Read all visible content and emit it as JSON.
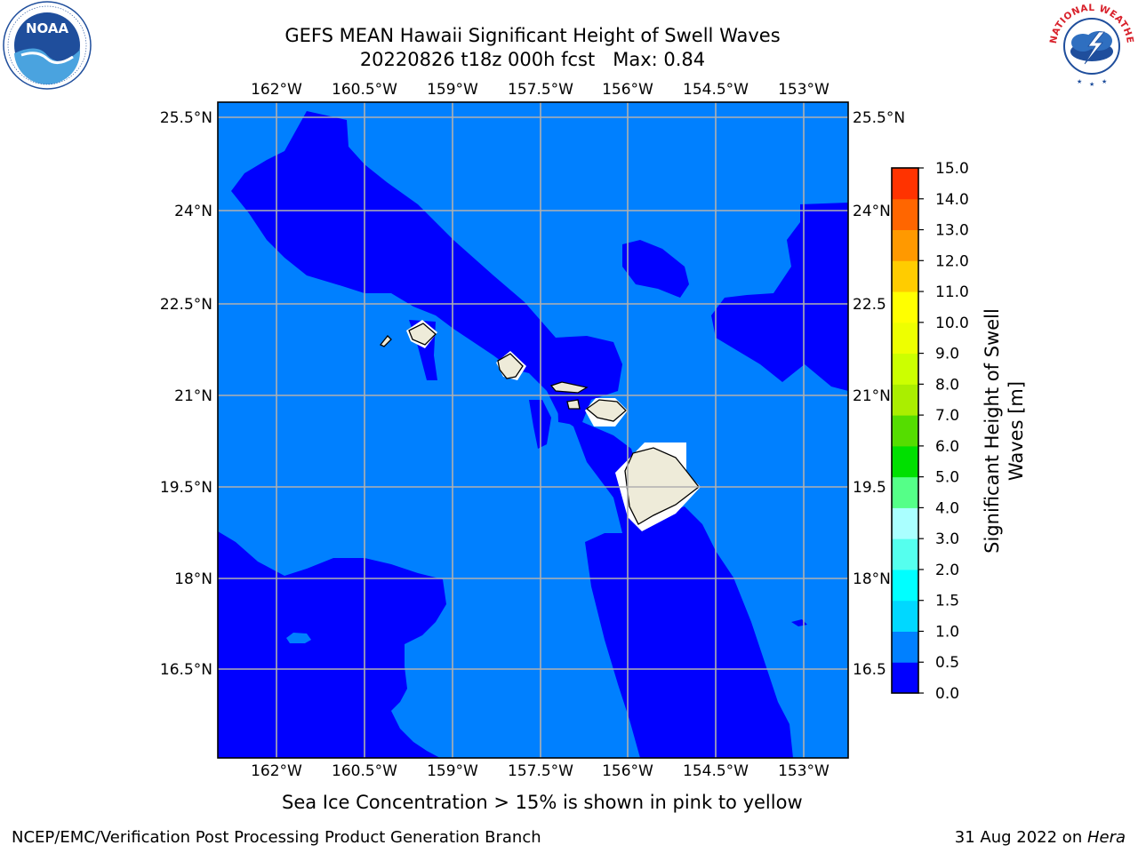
{
  "header": {
    "title_line1": "GEFS MEAN Hawaii Significant Height of Swell Waves",
    "title_line2": "20220826 t18z 000h fcst   Max: 0.84"
  },
  "logos": {
    "left": {
      "icon": "noaa-logo-icon",
      "text": "NOAA"
    },
    "right": {
      "icon": "nws-logo-icon",
      "text": "NATIONAL WEATHER SERVICE"
    }
  },
  "map": {
    "lon_ticks": [
      "162°W",
      "160.5°W",
      "159°W",
      "157.5°W",
      "156°W",
      "154.5°W",
      "153°W"
    ],
    "lat_ticks_left": [
      "25.5°N",
      "24°N",
      "22.5°N",
      "21°N",
      "19.5°N",
      "18°N",
      "16.5°N"
    ],
    "lat_ticks_right": [
      "25.5°N",
      "24°N",
      "22.5",
      "21°N",
      "19.5",
      "18°N",
      "16.5"
    ],
    "colors": {
      "band_0_0.5": "#0000ff",
      "band_0.5_1.0": "#0080ff",
      "land": "#eeebd9",
      "grid": "#b0b0b0"
    }
  },
  "colorbar": {
    "label_line1": "Significant Height of Swell",
    "label_line2": "Waves [m]",
    "ticks": [
      "0.0",
      "0.5",
      "1.0",
      "1.5",
      "2.0",
      "3.0",
      "4.0",
      "5.0",
      "6.0",
      "7.0",
      "8.0",
      "9.0",
      "10.0",
      "11.0",
      "12.0",
      "13.0",
      "14.0",
      "15.0"
    ],
    "colors": [
      "#0000ff",
      "#0080ff",
      "#00d8ff",
      "#00ffff",
      "#55ffee",
      "#aaffff",
      "#55ff88",
      "#00e000",
      "#55dd00",
      "#aaee00",
      "#ccff00",
      "#eeff00",
      "#ffff00",
      "#ffcc00",
      "#ff9900",
      "#ff6600",
      "#ff3300",
      "#ff0000"
    ]
  },
  "subtitle": "Sea Ice Concentration > 15% is shown in pink to yellow",
  "footer": {
    "left": "NCEP/EMC/Verification Post Processing Product Generation Branch",
    "right_prefix": "31 Aug 2022 on ",
    "right_host": "Hera"
  }
}
